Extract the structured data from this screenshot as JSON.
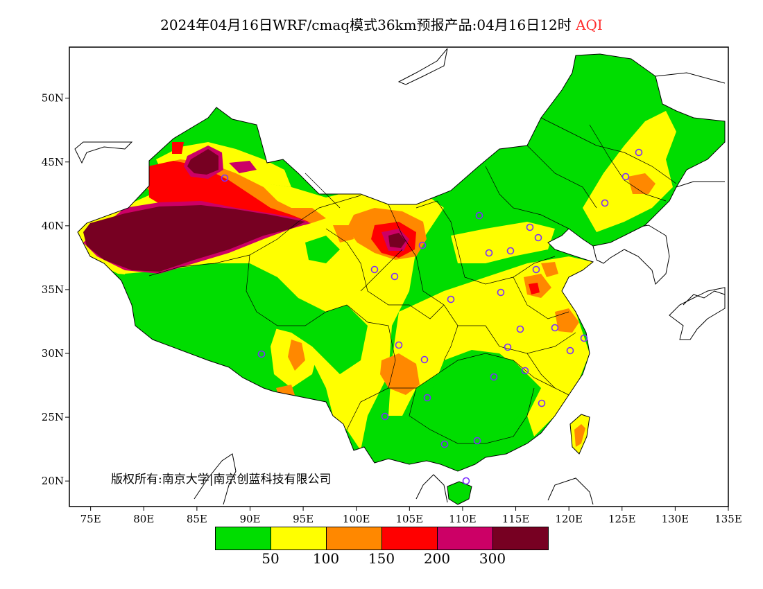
{
  "title": {
    "main": "2024年04月16日WRF/cmaq模式36km预报产品:04月16日12时",
    "variable": "AQI",
    "variable_color": "#ff3030"
  },
  "axes": {
    "lon_ticks": [
      "75E",
      "80E",
      "85E",
      "90E",
      "95E",
      "100E",
      "105E",
      "110E",
      "115E",
      "120E",
      "125E",
      "130E",
      "135E"
    ],
    "lat_ticks": [
      "20N",
      "25N",
      "30N",
      "35N",
      "40N",
      "45N",
      "50N"
    ],
    "lon_range": [
      73,
      135
    ],
    "lat_range": [
      18,
      54
    ]
  },
  "copyright": "版权所有:南京大学|南京创蓝科技有限公司",
  "legend": {
    "colors": [
      "#00dd00",
      "#ffff00",
      "#ff8800",
      "#ff0000",
      "#cc0066",
      "#770022"
    ],
    "labels": [
      "50",
      "100",
      "150",
      "200",
      "300"
    ]
  },
  "colors": {
    "good": "#00dd00",
    "moderate": "#ffff00",
    "unhealthy_sensitive": "#ff8800",
    "unhealthy": "#ff0000",
    "very_unhealthy": "#cc0066",
    "hazardous": "#770022",
    "station_marker": "#7b2cff"
  }
}
